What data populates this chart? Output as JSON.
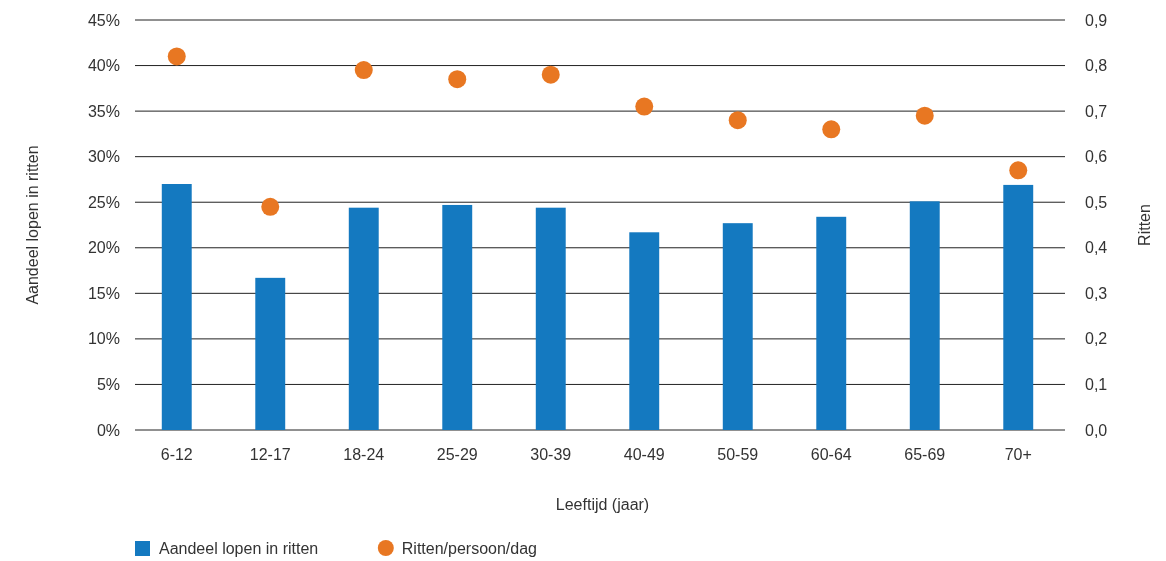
{
  "chart_data": {
    "type": "bar",
    "xlabel": "Leeftijd (jaar)",
    "ylabel": "Aandeel lopen in ritten",
    "y2label": "Ritten",
    "categories": [
      "6-12",
      "12-17",
      "18-24",
      "25-29",
      "30-39",
      "40-49",
      "50-59",
      "60-64",
      "65-69",
      "70+"
    ],
    "series": [
      {
        "name": "Aandeel lopen in ritten",
        "color": "#1479c0",
        "values": [
          27.0,
          16.7,
          24.4,
          24.7,
          24.4,
          21.7,
          22.7,
          23.4,
          25.1,
          26.9
        ]
      },
      {
        "name": "Ritten/persoon/dag",
        "type": "scatter",
        "axis": "y2",
        "color": "#e87722",
        "marker": "circle",
        "values": [
          0.82,
          0.49,
          0.79,
          0.77,
          0.78,
          0.71,
          0.68,
          0.66,
          0.69,
          0.57
        ]
      }
    ],
    "ylim": [
      0,
      45
    ],
    "yticks": [
      {
        "value": 0,
        "label": "0%"
      },
      {
        "value": 5,
        "label": "5%"
      },
      {
        "value": 10,
        "label": "10%"
      },
      {
        "value": 15,
        "label": "15%"
      },
      {
        "value": 20,
        "label": "20%"
      },
      {
        "value": 25,
        "label": "25%"
      },
      {
        "value": 30,
        "label": "30%"
      },
      {
        "value": 35,
        "label": "35%"
      },
      {
        "value": 40,
        "label": "40%"
      },
      {
        "value": 45,
        "label": "45%"
      }
    ],
    "y2lim": [
      0,
      0.9
    ],
    "y2ticks": [
      {
        "value": 0,
        "label": "0,0"
      },
      {
        "value": 0.1,
        "label": "0,1"
      },
      {
        "value": 0.2,
        "label": "0,2"
      },
      {
        "value": 0.3,
        "label": "0,3"
      },
      {
        "value": 0.4,
        "label": "0,4"
      },
      {
        "value": 0.5,
        "label": "0,5"
      },
      {
        "value": 0.6,
        "label": "0,6"
      },
      {
        "value": 0.7,
        "label": "0,7"
      },
      {
        "value": 0.8,
        "label": "0,8"
      },
      {
        "value": 0.9,
        "label": "0,9"
      }
    ],
    "grid": "y",
    "legend": "bottom"
  }
}
